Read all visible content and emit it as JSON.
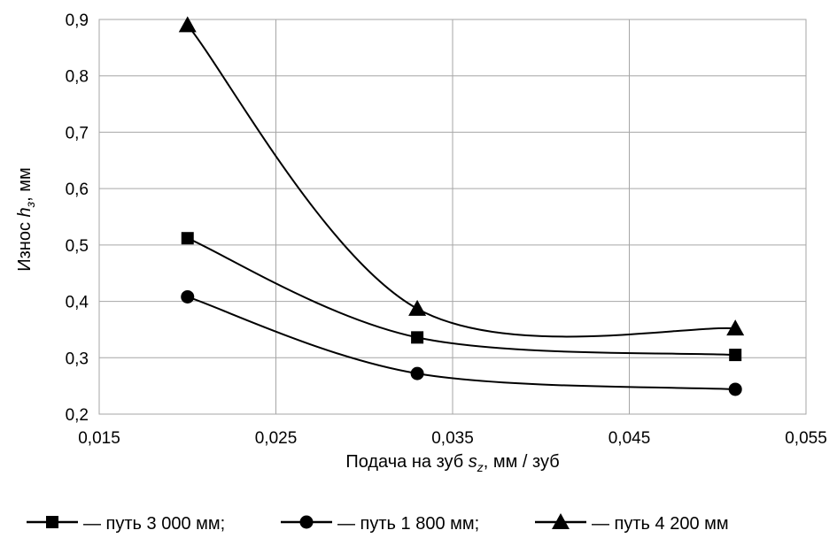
{
  "chart_data": {
    "type": "line",
    "smooth": true,
    "grid": true,
    "legend_position": "bottom",
    "xlabel": {
      "prefix": "Подача на зуб ",
      "var": "s",
      "sub": "z",
      "suffix": ", мм / зуб"
    },
    "ylabel": {
      "prefix": "Износ ",
      "var": "h",
      "sub": "з",
      "suffix": ",  мм"
    },
    "xlim": [
      0.015,
      0.055
    ],
    "ylim": [
      0.2,
      0.9
    ],
    "x_ticks": [
      {
        "value": 0.015,
        "label": "0,015"
      },
      {
        "value": 0.025,
        "label": "0,025"
      },
      {
        "value": 0.035,
        "label": "0,035"
      },
      {
        "value": 0.045,
        "label": "0,045"
      },
      {
        "value": 0.055,
        "label": "0,055"
      }
    ],
    "y_ticks": [
      {
        "value": 0.2,
        "label": "0,2"
      },
      {
        "value": 0.3,
        "label": "0,3"
      },
      {
        "value": 0.4,
        "label": "0,4"
      },
      {
        "value": 0.5,
        "label": "0,5"
      },
      {
        "value": 0.6,
        "label": "0,6"
      },
      {
        "value": 0.7,
        "label": "0,7"
      },
      {
        "value": 0.8,
        "label": "0,8"
      },
      {
        "value": 0.9,
        "label": "0,9"
      }
    ],
    "x": [
      0.02,
      0.033,
      0.051
    ],
    "series": [
      {
        "name": "— путь 3 000 мм;",
        "marker": "square",
        "values": [
          0.512,
          0.336,
          0.305
        ]
      },
      {
        "name": "— путь 1 800 мм;",
        "marker": "circle",
        "values": [
          0.408,
          0.272,
          0.244
        ]
      },
      {
        "name": "— путь 4 200 мм",
        "marker": "triangle",
        "values": [
          0.89,
          0.387,
          0.352
        ]
      }
    ],
    "colors": {
      "line": "#000000",
      "grid": "#a6a6a6",
      "background": "#ffffff"
    }
  }
}
